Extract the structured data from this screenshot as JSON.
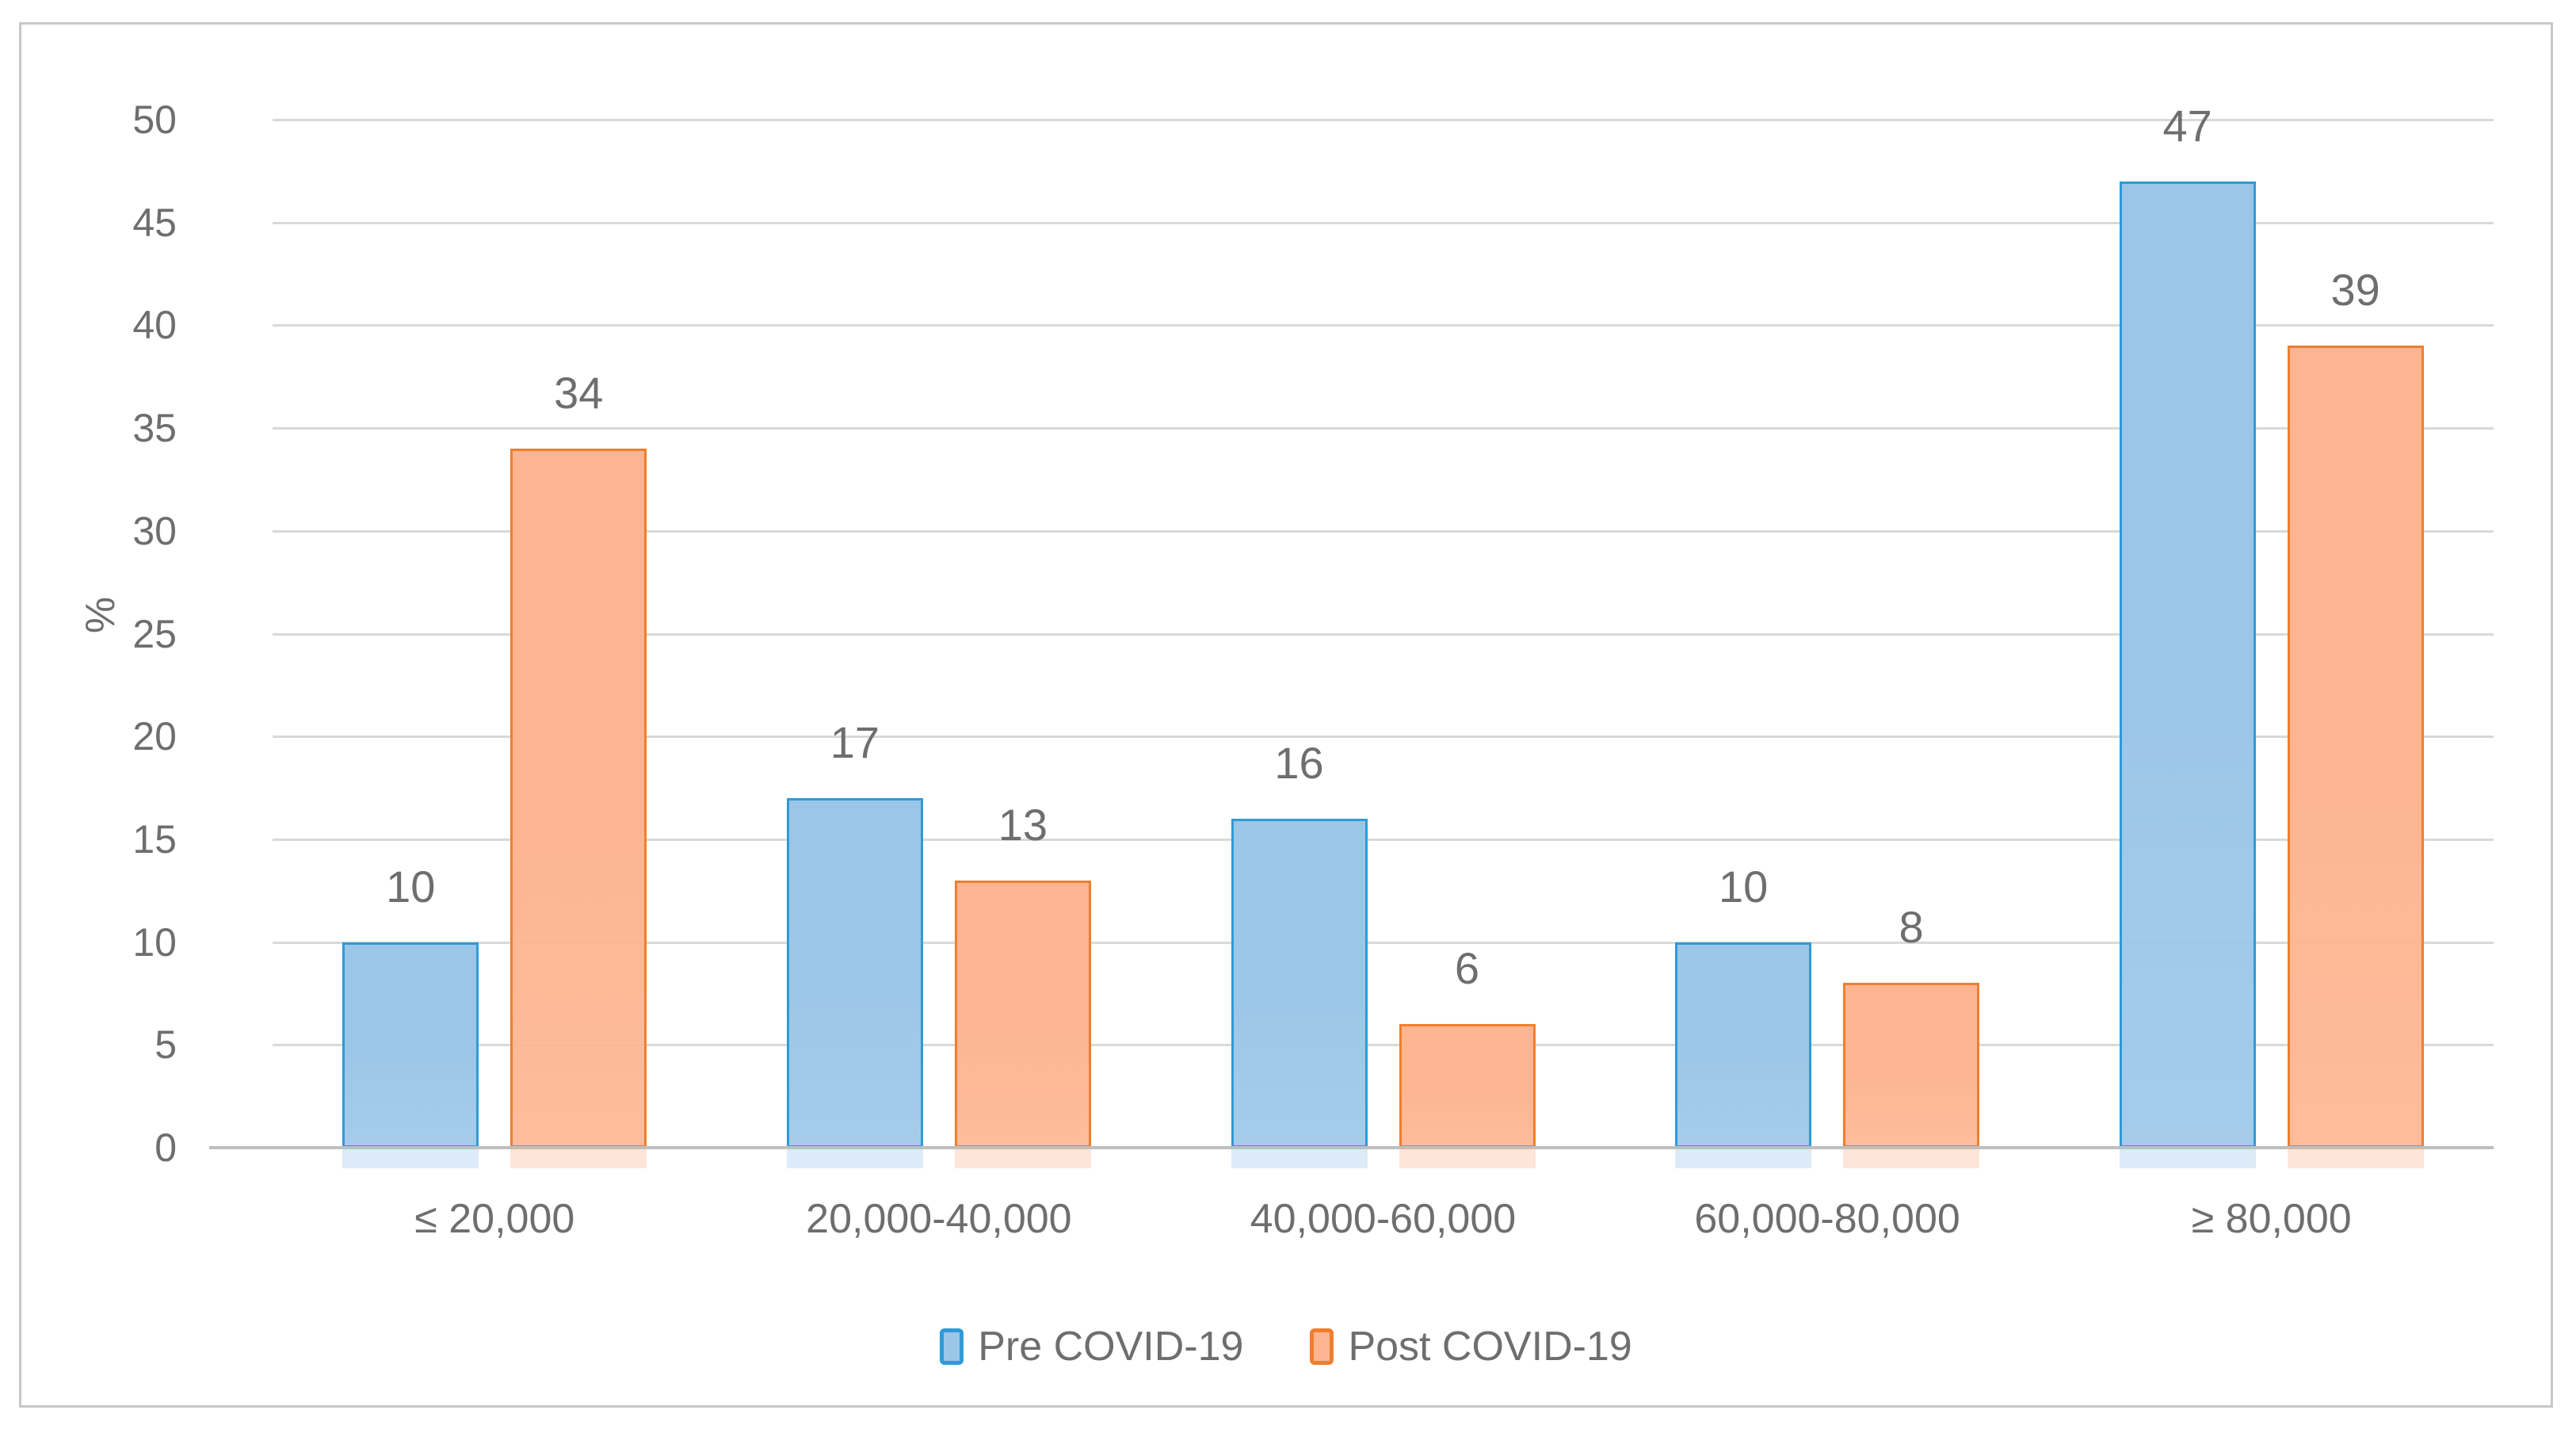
{
  "chart_data": {
    "type": "bar",
    "title": "",
    "categories": [
      "≤ 20,000",
      "20,000-40,000",
      "40,000-60,000",
      "60,000-80,000",
      "≥ 80,000"
    ],
    "series": [
      {
        "name": "Pre COVID-19",
        "values": [
          10,
          17,
          16,
          10,
          47
        ],
        "fill": "#9CC6E8",
        "border": "#2E9BD6"
      },
      {
        "name": "Post COVID-19",
        "values": [
          34,
          13,
          6,
          8,
          39
        ],
        "fill": "#FDB591",
        "border": "#F07E2D"
      }
    ],
    "xlabel": "",
    "ylabel": "%",
    "ylim": [
      0,
      50
    ],
    "ytick_step": 5,
    "grid": true,
    "legend_position": "bottom",
    "data_labels": true
  },
  "colors": {
    "pre_fill": "#9CC6E8",
    "pre_border": "#2E9BD6",
    "post_fill": "#FDB591",
    "post_border": "#F07E2D",
    "gridline": "#D9D9D9",
    "axis_line": "#BFBFBF",
    "label_text": "#6E6E6E",
    "frame_border": "#C7C7C7"
  }
}
